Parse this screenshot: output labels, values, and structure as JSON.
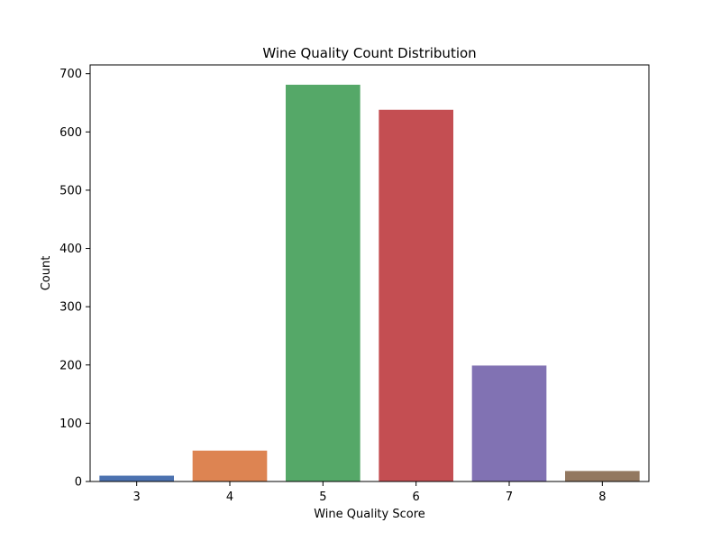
{
  "chart_data": {
    "type": "bar",
    "title": "Wine Quality Count Distribution",
    "xlabel": "Wine Quality Score",
    "ylabel": "Count",
    "categories": [
      "3",
      "4",
      "5",
      "6",
      "7",
      "8"
    ],
    "values": [
      10,
      53,
      681,
      638,
      199,
      18
    ],
    "colors": [
      "#4c72b0",
      "#dd8452",
      "#55a868",
      "#c44e52",
      "#8172b3",
      "#937860"
    ],
    "ylim": [
      0,
      715
    ],
    "yticks": [
      0,
      100,
      200,
      300,
      400,
      500,
      600,
      700
    ],
    "grid": false
  }
}
